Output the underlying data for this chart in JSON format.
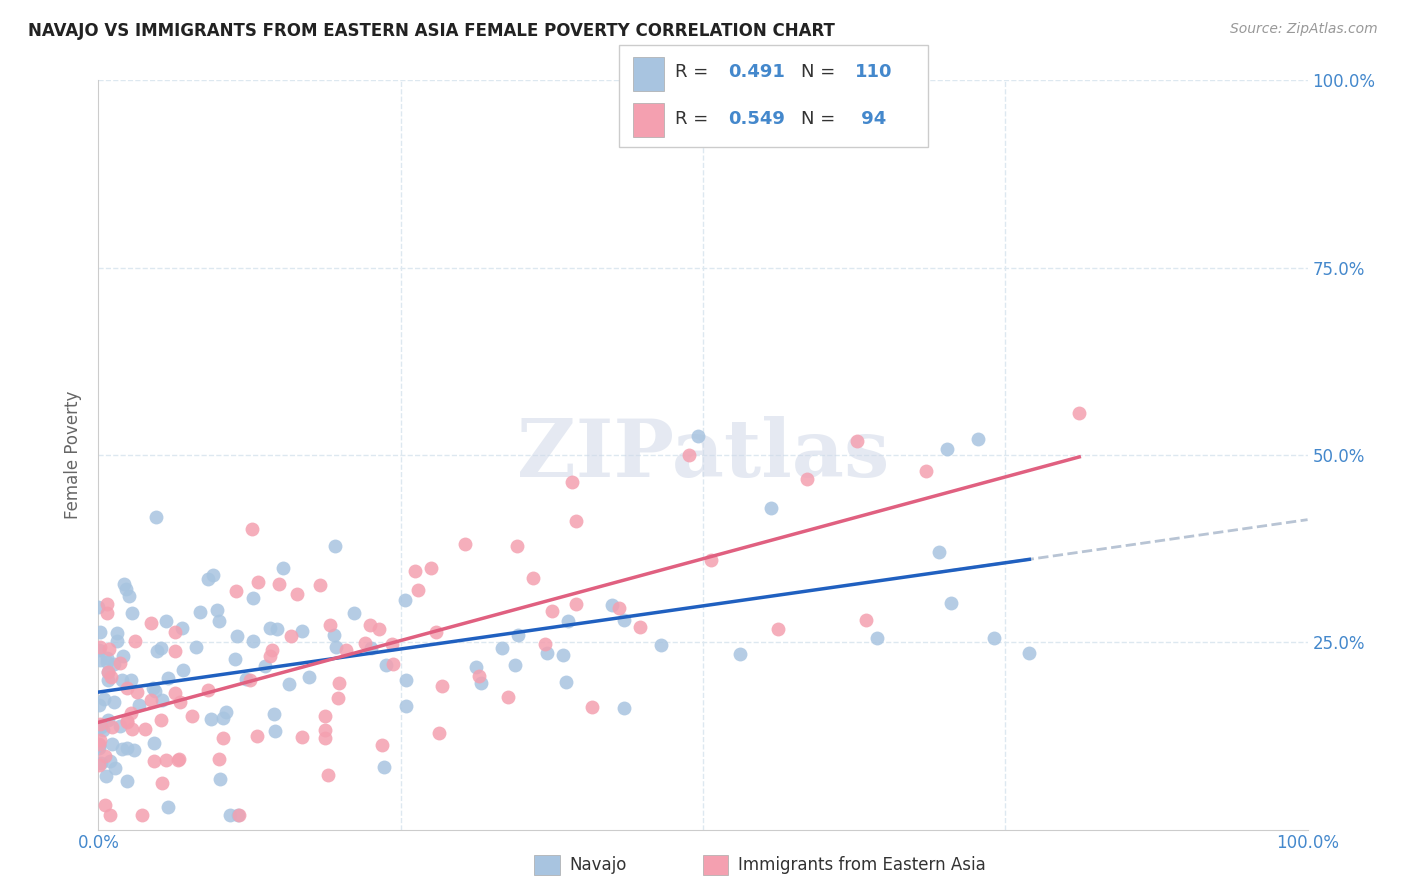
{
  "title": "NAVAJO VS IMMIGRANTS FROM EASTERN ASIA FEMALE POVERTY CORRELATION CHART",
  "source": "Source: ZipAtlas.com",
  "ylabel": "Female Poverty",
  "xlim": [
    0.0,
    1.0
  ],
  "ylim": [
    0.0,
    1.0
  ],
  "navajo_R": 0.491,
  "navajo_N": 110,
  "immigrant_R": 0.549,
  "immigrant_N": 94,
  "navajo_color": "#a8c4e0",
  "immigrant_color": "#f4a0b0",
  "navajo_line_color": "#2060c0",
  "immigrant_line_color": "#e06080",
  "trendline_dashed_color": "#b8c4d4",
  "background_color": "#ffffff",
  "grid_color": "#dde8f0",
  "watermark": "ZIPatlas"
}
